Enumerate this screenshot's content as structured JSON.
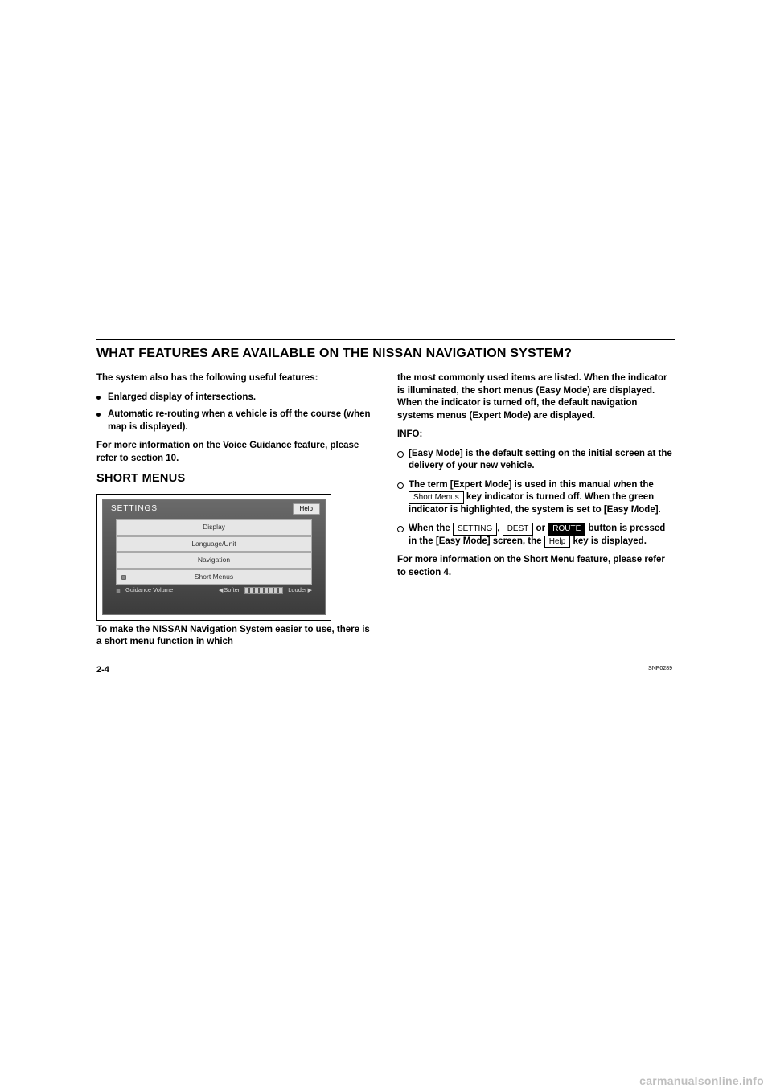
{
  "header": {
    "title": "WHAT FEATURES ARE AVAILABLE ON THE NISSAN NAVIGATION SYSTEM?"
  },
  "left": {
    "intro": "The system also has the following useful features:",
    "bullets": [
      "Enlarged display of intersections.",
      "Automatic re-routing when a vehicle is off the course (when map is displayed)."
    ],
    "voice_note": "For more information on the Voice Guidance feature, please refer to section 10.",
    "subheading": "SHORT MENUS",
    "caption": "To make the NISSAN Navigation System easier to use, there is a short menu function in which"
  },
  "screenshot": {
    "title": "SETTINGS",
    "help": "Help",
    "items": [
      "Display",
      "Language/Unit",
      "Navigation",
      "Short Menus"
    ],
    "volume_label": "Guidance Volume",
    "softer": "Softer",
    "louder": "Louder",
    "code": "SNP0289"
  },
  "right": {
    "para1": "the most commonly used items are listed. When the indicator is illuminated, the short menus (Easy Mode) are displayed. When the indicator is turned off, the default navigation systems menus (Expert Mode) are displayed.",
    "info_label": "INFO:",
    "li1": "[Easy Mode] is the default setting on the initial screen at the delivery of your new vehicle.",
    "li2a": "The term [Expert Mode] is used in this manual when the ",
    "short_menus_key": "Short Menus",
    "li2b": " key indicator is turned off. When the green indicator is highlighted, the system is set to [Easy Mode].",
    "li3a": "When the ",
    "setting_key": "SETTING",
    "comma": ", ",
    "dest_key": "DEST",
    "or": " or ",
    "route_key": "ROUTE",
    "li3b": " button is pressed in the [Easy Mode] screen, the ",
    "help_key": "Help",
    "li3c": " key is displayed.",
    "closing": "For more information on the Short Menu feature, please refer to section 4."
  },
  "page_number": "2-4",
  "watermark": "carmanualsonline.info"
}
